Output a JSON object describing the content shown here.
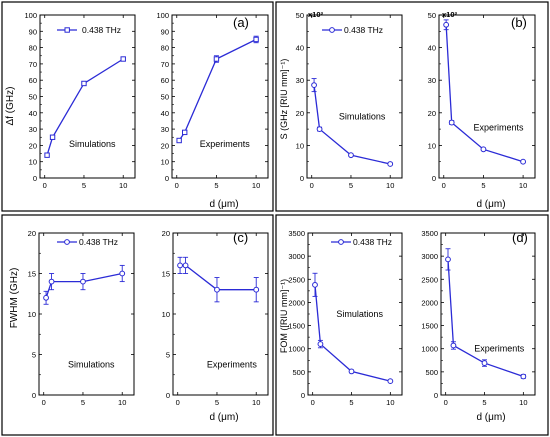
{
  "figure": {
    "panels": [
      {
        "id": "a",
        "panel_label": "(a)",
        "ylabel": "Δf (GHz)",
        "xlabel": "d (μm)",
        "legend": "0.438 THz",
        "exponent": ""
      },
      {
        "id": "b",
        "panel_label": "(b)",
        "ylabel": "S (GHz [RIU mm]⁻¹)",
        "xlabel": "d (μm)",
        "legend": "0.438 THz",
        "exponent": "x10³"
      },
      {
        "id": "c",
        "panel_label": "(c)",
        "ylabel": "FWHM (GHz)",
        "xlabel": "d (μm)",
        "legend": "0.438 THz",
        "exponent": ""
      },
      {
        "id": "d",
        "panel_label": "(d)",
        "ylabel": "FOM ([RIU mm]⁻¹)",
        "xlabel": "d (μm)",
        "legend": "0.438 THz",
        "exponent": ""
      }
    ],
    "colors": {
      "series": "#2b2bd6",
      "frame": "#000000"
    }
  },
  "chart_data": [
    {
      "id": "a-sim",
      "type": "line",
      "annotation": "Simulations",
      "series": [
        {
          "name": "0.438 THz",
          "x": [
            0.3,
            1,
            5,
            10
          ],
          "y": [
            14,
            25,
            58,
            73
          ],
          "err": [
            1,
            1,
            1,
            1
          ]
        }
      ],
      "xlim": [
        -0.6,
        11.5
      ],
      "xticks": [
        0,
        5,
        10
      ],
      "ylim": [
        0,
        100
      ],
      "yticks": [
        0,
        10,
        20,
        30,
        40,
        50,
        60,
        70,
        80,
        90,
        100
      ],
      "marker": "square"
    },
    {
      "id": "a-exp",
      "type": "line",
      "annotation": "Experiments",
      "series": [
        {
          "name": "0.438 THz",
          "x": [
            0.3,
            1,
            5,
            10
          ],
          "y": [
            23,
            28,
            73,
            85
          ],
          "err": [
            1,
            1,
            2,
            2
          ]
        }
      ],
      "xlim": [
        -0.6,
        11.5
      ],
      "xticks": [
        0,
        5,
        10
      ],
      "ylim": [
        0,
        100
      ],
      "yticks": [
        0,
        10,
        20,
        30,
        40,
        50,
        60,
        70,
        80,
        90,
        100
      ],
      "marker": "square"
    },
    {
      "id": "b-sim",
      "type": "line",
      "annotation": "Simulations",
      "series": [
        {
          "name": "0.438 THz",
          "x": [
            0.3,
            1,
            5,
            10
          ],
          "y": [
            28.5,
            15,
            7,
            4.3
          ],
          "err": [
            2,
            0.6,
            0.4,
            0.3
          ]
        }
      ],
      "xlim": [
        -0.6,
        11.5
      ],
      "xticks": [
        0,
        5,
        10
      ],
      "ylim": [
        0,
        50
      ],
      "yticks": [
        0,
        10,
        20,
        30,
        40,
        50
      ],
      "marker": "circle"
    },
    {
      "id": "b-exp",
      "type": "line",
      "annotation": "Experiments",
      "series": [
        {
          "name": "0.438 THz",
          "x": [
            0.3,
            1,
            5,
            10
          ],
          "y": [
            47,
            17,
            8.8,
            5
          ],
          "err": [
            1.5,
            0.6,
            0.4,
            0.3
          ]
        }
      ],
      "xlim": [
        -0.6,
        11.5
      ],
      "xticks": [
        0,
        5,
        10
      ],
      "ylim": [
        0,
        50
      ],
      "yticks": [
        0,
        10,
        20,
        30,
        40,
        50
      ],
      "marker": "circle"
    },
    {
      "id": "c-sim",
      "type": "line",
      "annotation": "Simulations",
      "series": [
        {
          "name": "0.438 THz",
          "x": [
            0.3,
            1,
            5,
            10
          ],
          "y": [
            12,
            14,
            14,
            15
          ],
          "err": [
            0.8,
            1,
            1,
            1
          ]
        }
      ],
      "xlim": [
        -0.6,
        11.5
      ],
      "xticks": [
        0,
        5,
        10
      ],
      "ylim": [
        0,
        20
      ],
      "yticks": [
        0,
        5,
        10,
        15,
        20
      ],
      "marker": "circle"
    },
    {
      "id": "c-exp",
      "type": "line",
      "annotation": "Experiments",
      "series": [
        {
          "name": "0.438 THz",
          "x": [
            0.3,
            1,
            5,
            10
          ],
          "y": [
            16,
            16,
            13,
            13
          ],
          "err": [
            1,
            1,
            1.5,
            1.5
          ]
        }
      ],
      "xlim": [
        -0.6,
        11.5
      ],
      "xticks": [
        0,
        5,
        10
      ],
      "ylim": [
        0,
        20
      ],
      "yticks": [
        0,
        5,
        10,
        15,
        20
      ],
      "marker": "circle"
    },
    {
      "id": "d-sim",
      "type": "line",
      "annotation": "Simulations",
      "series": [
        {
          "name": "0.438 THz",
          "x": [
            0.3,
            1,
            5,
            10
          ],
          "y": [
            2380,
            1100,
            510,
            300
          ],
          "err": [
            250,
            80,
            30,
            20
          ]
        }
      ],
      "xlim": [
        -0.6,
        11.5
      ],
      "xticks": [
        0,
        5,
        10
      ],
      "ylim": [
        0,
        3500
      ],
      "yticks": [
        0,
        500,
        1000,
        1500,
        2000,
        2500,
        3000,
        3500
      ],
      "marker": "circle"
    },
    {
      "id": "d-exp",
      "type": "line",
      "annotation": "Experiments",
      "series": [
        {
          "name": "0.438 THz",
          "x": [
            0.3,
            1,
            5,
            10
          ],
          "y": [
            2930,
            1070,
            690,
            400
          ],
          "err": [
            230,
            80,
            70,
            40
          ]
        }
      ],
      "xlim": [
        -0.6,
        11.5
      ],
      "xticks": [
        0,
        5,
        10
      ],
      "ylim": [
        0,
        3500
      ],
      "yticks": [
        0,
        500,
        1000,
        1500,
        2000,
        2500,
        3000,
        3500
      ],
      "marker": "circle"
    }
  ]
}
